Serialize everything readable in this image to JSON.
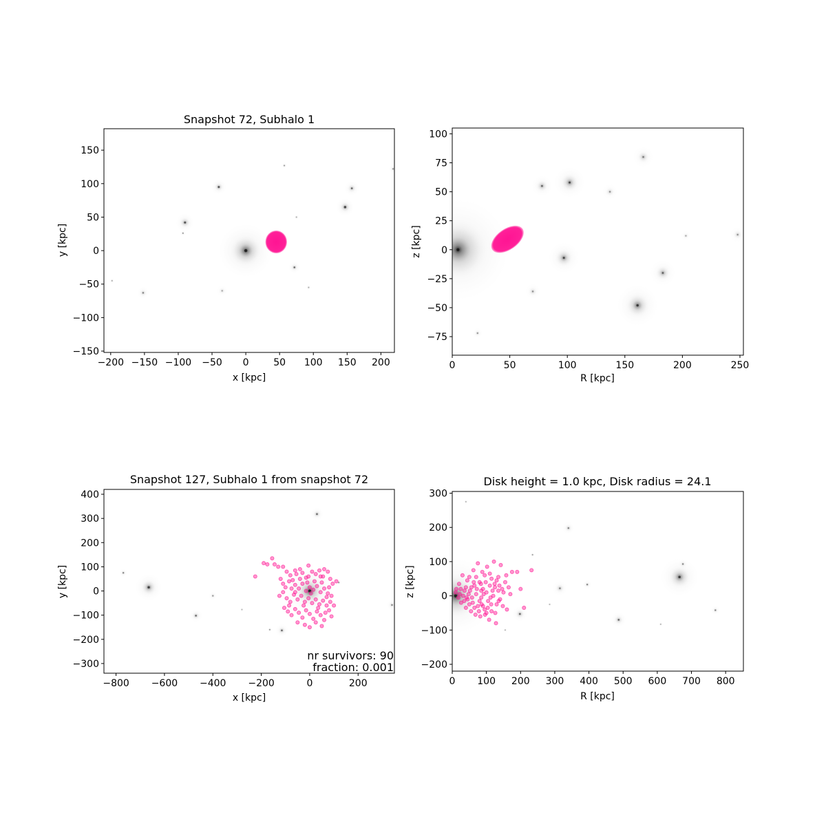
{
  "colors": {
    "survivor": "#ff1493",
    "stars": "#000000",
    "axes": "#000000",
    "background": "#ffffff"
  },
  "chart_data": [
    {
      "type": "scatter",
      "title": "Snapshot 72, Subhalo 1",
      "xlabel": "x [kpc]",
      "ylabel": "y [kpc]",
      "xlim": [
        -210,
        220
      ],
      "ylim": [
        -152,
        182
      ],
      "xticks": [
        -200,
        -150,
        -100,
        -50,
        0,
        50,
        100,
        150,
        200
      ],
      "yticks": [
        -150,
        -100,
        -50,
        0,
        50,
        100,
        150
      ],
      "grid": false,
      "background_halos": [
        {
          "x": 0,
          "y": 0,
          "r": 18,
          "w": 1.0
        },
        {
          "x": -90,
          "y": 42,
          "r": 6,
          "w": 0.7
        },
        {
          "x": -40,
          "y": 95,
          "r": 5,
          "w": 0.7
        },
        {
          "x": 147,
          "y": 65,
          "r": 6,
          "w": 0.8
        },
        {
          "x": 157,
          "y": 93,
          "r": 5,
          "w": 0.6
        },
        {
          "x": 72,
          "y": -25,
          "r": 4,
          "w": 0.6
        },
        {
          "x": -152,
          "y": -63,
          "r": 4,
          "w": 0.5
        },
        {
          "x": 57,
          "y": 127,
          "r": 2,
          "w": 0.4
        },
        {
          "x": 218,
          "y": 122,
          "r": 3,
          "w": 0.4
        },
        {
          "x": -35,
          "y": -60,
          "r": 4,
          "w": 0.3
        },
        {
          "x": -198,
          "y": -45,
          "r": 2,
          "w": 0.3
        },
        {
          "x": 93,
          "y": -55,
          "r": 2,
          "w": 0.3
        },
        {
          "x": -93,
          "y": 26,
          "r": 2,
          "w": 0.4
        },
        {
          "x": 75,
          "y": 50,
          "r": 2,
          "w": 0.3
        }
      ],
      "survivor_clouds": [
        {
          "x": 45,
          "y": 13,
          "rx": 16,
          "ry": 17
        }
      ],
      "survivor_points": []
    },
    {
      "type": "scatter",
      "title": "",
      "xlabel": "R [kpc]",
      "ylabel": "z [kpc]",
      "xlim": [
        0,
        253
      ],
      "ylim": [
        -91,
        105
      ],
      "xticks": [
        0,
        50,
        100,
        150,
        200,
        250
      ],
      "yticks": [
        -75,
        -50,
        -25,
        0,
        25,
        50,
        75,
        100
      ],
      "grid": false,
      "background_halos": [
        {
          "x": 5,
          "y": 0,
          "r": 20,
          "w": 1.0
        },
        {
          "x": 78,
          "y": 55,
          "r": 4,
          "w": 0.6
        },
        {
          "x": 102,
          "y": 58,
          "r": 6,
          "w": 0.7
        },
        {
          "x": 97,
          "y": -7,
          "r": 6,
          "w": 0.7
        },
        {
          "x": 166,
          "y": 80,
          "r": 4,
          "w": 0.5
        },
        {
          "x": 137,
          "y": 50,
          "r": 3,
          "w": 0.4
        },
        {
          "x": 183,
          "y": -20,
          "r": 5,
          "w": 0.6
        },
        {
          "x": 161,
          "y": -48,
          "r": 8,
          "w": 0.8
        },
        {
          "x": 248,
          "y": 13,
          "r": 3,
          "w": 0.4
        },
        {
          "x": 70,
          "y": -36,
          "r": 3,
          "w": 0.4
        },
        {
          "x": 22,
          "y": -72,
          "r": 2,
          "w": 0.4
        },
        {
          "x": 203,
          "y": 12,
          "r": 2,
          "w": 0.3
        }
      ],
      "survivor_clouds": [
        {
          "x": 48,
          "y": 9,
          "rx": 16,
          "ry": 9,
          "angle": -35
        }
      ],
      "survivor_points": []
    },
    {
      "type": "scatter",
      "title": "Snapshot 127, Subhalo 1 from snapshot 72",
      "xlabel": "x [kpc]",
      "ylabel": "y [kpc]",
      "xlim": [
        -850,
        350
      ],
      "ylim": [
        -340,
        420
      ],
      "xticks": [
        -800,
        -600,
        -400,
        -200,
        0,
        200
      ],
      "yticks": [
        -300,
        -200,
        -100,
        0,
        100,
        200,
        300,
        400
      ],
      "grid": false,
      "annotations": [
        "nr survivors: 90",
        "fraction: 0.001"
      ],
      "background_halos": [
        {
          "x": 0,
          "y": 0,
          "r": 45,
          "w": 1.0
        },
        {
          "x": -665,
          "y": 15,
          "r": 25,
          "w": 0.8
        },
        {
          "x": -470,
          "y": -102,
          "r": 12,
          "w": 0.6
        },
        {
          "x": -770,
          "y": 75,
          "r": 8,
          "w": 0.5
        },
        {
          "x": -400,
          "y": -20,
          "r": 8,
          "w": 0.4
        },
        {
          "x": 30,
          "y": 318,
          "r": 12,
          "w": 0.6
        },
        {
          "x": -115,
          "y": -163,
          "r": 12,
          "w": 0.6
        },
        {
          "x": 340,
          "y": -58,
          "r": 10,
          "w": 0.5
        },
        {
          "x": -165,
          "y": -160,
          "r": 5,
          "w": 0.4
        },
        {
          "x": 120,
          "y": 35,
          "r": 6,
          "w": 0.4
        },
        {
          "x": -280,
          "y": -77,
          "r": 4,
          "w": 0.3
        }
      ],
      "survivor_clouds": [],
      "survivor_points": [
        [
          -225,
          60
        ],
        [
          -190,
          115
        ],
        [
          -175,
          110
        ],
        [
          -155,
          135
        ],
        [
          -145,
          110
        ],
        [
          -130,
          100
        ],
        [
          -110,
          100
        ],
        [
          -95,
          80
        ],
        [
          -80,
          65
        ],
        [
          -60,
          85
        ],
        [
          -55,
          70
        ],
        [
          -40,
          90
        ],
        [
          -30,
          75
        ],
        [
          -15,
          55
        ],
        [
          -5,
          60
        ],
        [
          10,
          80
        ],
        [
          25,
          70
        ],
        [
          40,
          85
        ],
        [
          55,
          60
        ],
        [
          60,
          90
        ],
        [
          75,
          80
        ],
        [
          85,
          50
        ],
        [
          95,
          30
        ],
        [
          110,
          40
        ],
        [
          -120,
          50
        ],
        [
          -110,
          30
        ],
        [
          -100,
          15
        ],
        [
          -85,
          40
        ],
        [
          -75,
          10
        ],
        [
          -60,
          25
        ],
        [
          -45,
          10
        ],
        [
          -30,
          30
        ],
        [
          -15,
          0
        ],
        [
          0,
          15
        ],
        [
          15,
          5
        ],
        [
          30,
          20
        ],
        [
          45,
          -5
        ],
        [
          60,
          10
        ],
        [
          75,
          -10
        ],
        [
          90,
          -20
        ],
        [
          -125,
          -20
        ],
        [
          -110,
          -5
        ],
        [
          -95,
          -30
        ],
        [
          -80,
          -45
        ],
        [
          -65,
          -15
        ],
        [
          -50,
          -35
        ],
        [
          -35,
          -20
        ],
        [
          -20,
          -45
        ],
        [
          -5,
          -30
        ],
        [
          10,
          -50
        ],
        [
          25,
          -35
        ],
        [
          40,
          -55
        ],
        [
          55,
          -40
        ],
        [
          70,
          -25
        ],
        [
          85,
          -45
        ],
        [
          100,
          -60
        ],
        [
          -105,
          -70
        ],
        [
          -90,
          -85
        ],
        [
          -75,
          -100
        ],
        [
          -60,
          -75
        ],
        [
          -45,
          -90
        ],
        [
          -30,
          -110
        ],
        [
          -15,
          -80
        ],
        [
          0,
          -95
        ],
        [
          15,
          -115
        ],
        [
          30,
          -85
        ],
        [
          45,
          -100
        ],
        [
          60,
          -120
        ],
        [
          80,
          -80
        ],
        [
          90,
          -105
        ],
        [
          -50,
          -130
        ],
        [
          -20,
          -140
        ],
        [
          0,
          -150
        ],
        [
          25,
          -130
        ],
        [
          50,
          -145
        ],
        [
          70,
          -60
        ],
        [
          -60,
          -5
        ],
        [
          -70,
          45
        ],
        [
          -40,
          50
        ],
        [
          -10,
          35
        ],
        [
          20,
          40
        ],
        [
          50,
          35
        ],
        [
          80,
          15
        ],
        [
          5,
          -10
        ],
        [
          -25,
          -60
        ],
        [
          35,
          -70
        ],
        [
          65,
          -90
        ],
        [
          -85,
          -60
        ],
        [
          45,
          60
        ],
        [
          -5,
          105
        ]
      ]
    },
    {
      "type": "scatter",
      "title": "Disk height = 1.0 kpc, Disk radius = 24.1",
      "xlabel": "R [kpc]",
      "ylabel": "z [kpc]",
      "xlim": [
        0,
        852
      ],
      "ylim": [
        -220,
        305
      ],
      "xticks": [
        0,
        100,
        200,
        300,
        400,
        500,
        600,
        700,
        800
      ],
      "yticks": [
        -200,
        -100,
        0,
        100,
        200,
        300
      ],
      "grid": false,
      "background_halos": [
        {
          "x": 10,
          "y": 0,
          "r": 50,
          "w": 1.0
        },
        {
          "x": 665,
          "y": 55,
          "r": 25,
          "w": 0.8
        },
        {
          "x": 675,
          "y": 93,
          "r": 6,
          "w": 0.5
        },
        {
          "x": 340,
          "y": 198,
          "r": 8,
          "w": 0.5
        },
        {
          "x": 315,
          "y": 22,
          "r": 10,
          "w": 0.5
        },
        {
          "x": 395,
          "y": 33,
          "r": 6,
          "w": 0.5
        },
        {
          "x": 487,
          "y": -70,
          "r": 10,
          "w": 0.6
        },
        {
          "x": 198,
          "y": -53,
          "r": 10,
          "w": 0.6
        },
        {
          "x": 770,
          "y": -42,
          "r": 6,
          "w": 0.5
        },
        {
          "x": 40,
          "y": 275,
          "r": 3,
          "w": 0.3
        },
        {
          "x": 235,
          "y": 120,
          "r": 3,
          "w": 0.4
        },
        {
          "x": 610,
          "y": -83,
          "r": 3,
          "w": 0.3
        },
        {
          "x": 285,
          "y": -25,
          "r": 3,
          "w": 0.3
        },
        {
          "x": 155,
          "y": -100,
          "r": 3,
          "w": 0.3
        }
      ],
      "survivor_clouds": [],
      "survivor_points": [
        [
          10,
          10
        ],
        [
          18,
          -5
        ],
        [
          25,
          20
        ],
        [
          32,
          0
        ],
        [
          40,
          25
        ],
        [
          45,
          -10
        ],
        [
          52,
          15
        ],
        [
          60,
          -20
        ],
        [
          65,
          30
        ],
        [
          70,
          5
        ],
        [
          75,
          -30
        ],
        [
          80,
          40
        ],
        [
          85,
          -5
        ],
        [
          90,
          20
        ],
        [
          95,
          -40
        ],
        [
          100,
          10
        ],
        [
          105,
          -15
        ],
        [
          110,
          30
        ],
        [
          115,
          -45
        ],
        [
          120,
          0
        ],
        [
          125,
          25
        ],
        [
          130,
          -25
        ],
        [
          135,
          15
        ],
        [
          140,
          -10
        ],
        [
          20,
          35
        ],
        [
          30,
          60
        ],
        [
          40,
          -35
        ],
        [
          50,
          55
        ],
        [
          55,
          -45
        ],
        [
          62,
          75
        ],
        [
          68,
          -55
        ],
        [
          75,
          95
        ],
        [
          82,
          -60
        ],
        [
          88,
          70
        ],
        [
          95,
          60
        ],
        [
          102,
          85
        ],
        [
          108,
          -70
        ],
        [
          115,
          50
        ],
        [
          122,
          100
        ],
        [
          128,
          -80
        ],
        [
          135,
          55
        ],
        [
          142,
          90
        ],
        [
          148,
          -30
        ],
        [
          155,
          40
        ],
        [
          165,
          25
        ],
        [
          175,
          70
        ],
        [
          190,
          70
        ],
        [
          200,
          20
        ],
        [
          210,
          -35
        ],
        [
          232,
          75
        ],
        [
          35,
          -15
        ],
        [
          48,
          5
        ],
        [
          58,
          -5
        ],
        [
          72,
          20
        ],
        [
          86,
          -25
        ],
        [
          98,
          40
        ],
        [
          112,
          -5
        ],
        [
          126,
          -50
        ],
        [
          138,
          30
        ],
        [
          65,
          -35
        ],
        [
          80,
          -15
        ],
        [
          92,
          5
        ],
        [
          104,
          -35
        ],
        [
          118,
          15
        ],
        [
          26,
          -20
        ],
        [
          44,
          45
        ],
        [
          56,
          25
        ],
        [
          70,
          55
        ],
        [
          84,
          35
        ],
        [
          96,
          -55
        ],
        [
          110,
          65
        ],
        [
          124,
          35
        ],
        [
          136,
          -15
        ],
        [
          150,
          10
        ],
        [
          160,
          -40
        ],
        [
          170,
          5
        ],
        [
          12,
          20
        ],
        [
          22,
          5
        ],
        [
          36,
          15
        ],
        [
          50,
          -25
        ],
        [
          78,
          -45
        ],
        [
          90,
          -30
        ],
        [
          100,
          -50
        ],
        [
          114,
          -25
        ],
        [
          130,
          45
        ],
        [
          146,
          20
        ],
        [
          158,
          60
        ],
        [
          63,
          40
        ],
        [
          42,
          -5
        ],
        [
          85,
          15
        ]
      ]
    }
  ]
}
